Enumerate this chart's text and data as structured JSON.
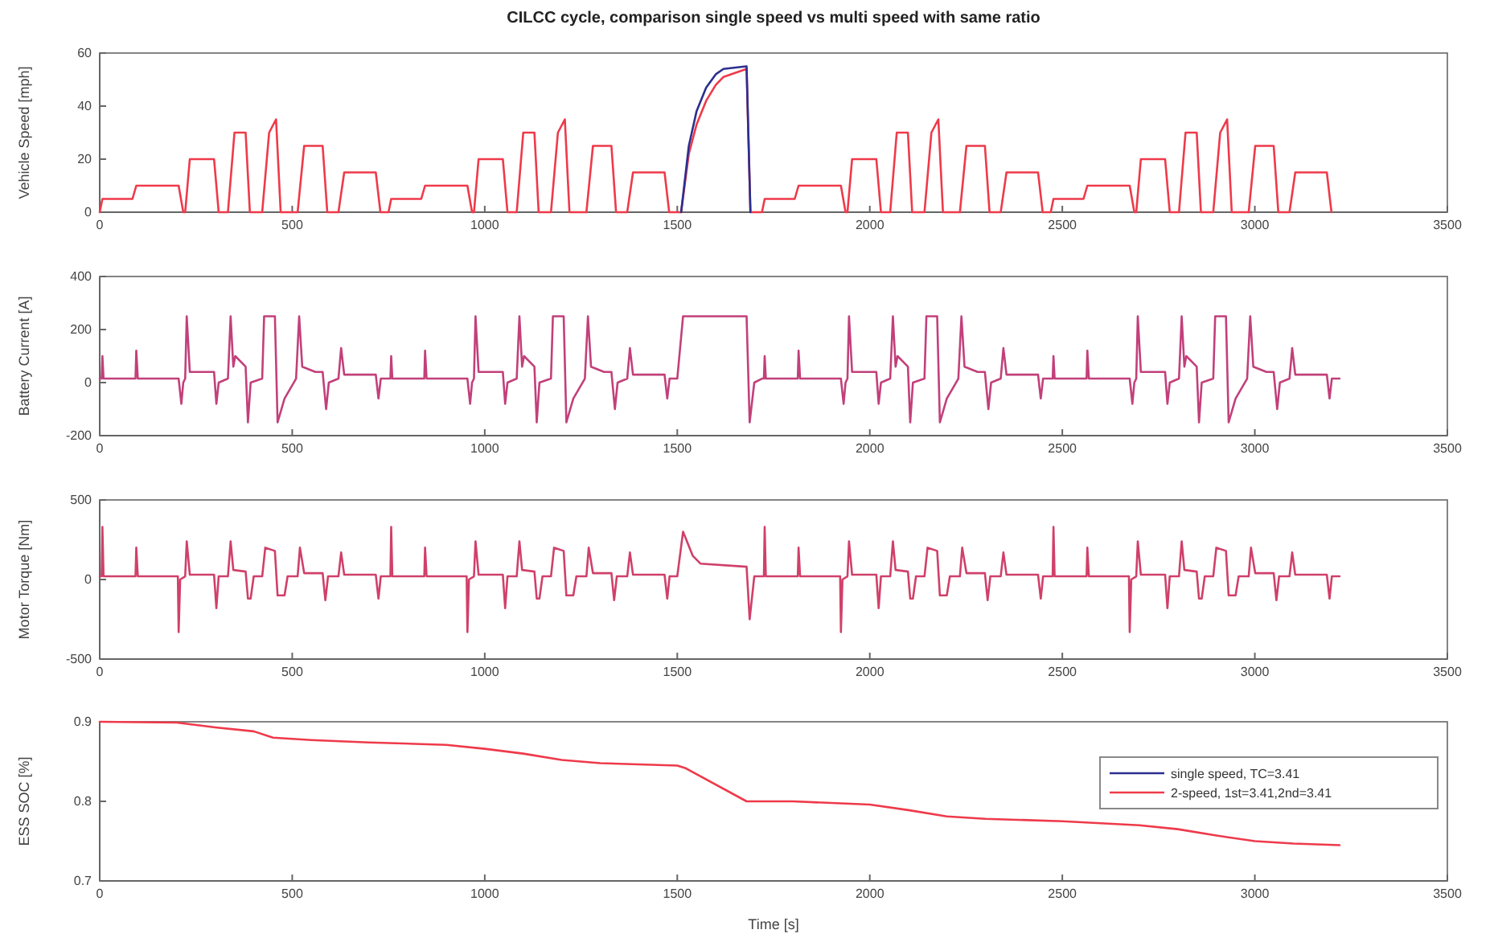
{
  "chart_data": [
    {
      "type": "line",
      "title": "CILCC cycle, comparison single speed vs multi speed with same ratio",
      "ylabel": "Vehicle Speed [mph]",
      "xlim": [
        0,
        3500
      ],
      "xticks": [
        0,
        500,
        1000,
        1500,
        2000,
        2500,
        3000,
        3500
      ],
      "ylim": [
        0,
        60
      ],
      "yticks": [
        0,
        20,
        40,
        60
      ],
      "grid": false,
      "legend": false,
      "x": [
        0,
        7,
        85,
        95,
        205,
        217,
        222,
        234,
        297,
        309,
        333,
        350,
        379,
        390,
        422,
        440,
        458,
        470,
        514,
        531,
        579,
        591,
        620,
        635,
        717,
        729,
        750,
        757,
        835,
        845,
        955,
        967,
        972,
        984,
        1047,
        1059,
        1083,
        1100,
        1129,
        1140,
        1172,
        1190,
        1208,
        1220,
        1264,
        1281,
        1329,
        1341,
        1370,
        1385,
        1467,
        1479,
        1510,
        1530,
        1550,
        1575,
        1600,
        1620,
        1680,
        1690,
        1720,
        1727,
        1805,
        1815,
        1925,
        1937,
        1942,
        1954,
        2017,
        2029,
        2053,
        2070,
        2099,
        2110,
        2142,
        2160,
        2178,
        2190,
        2234,
        2251,
        2299,
        2311,
        2340,
        2355,
        2437,
        2449,
        2470,
        2477,
        2555,
        2565,
        2675,
        2687,
        2692,
        2704,
        2767,
        2779,
        2803,
        2820,
        2849,
        2860,
        2892,
        2910,
        2928,
        2940,
        2984,
        3001,
        3049,
        3061,
        3090,
        3105,
        3187,
        3199
      ],
      "series": [
        {
          "color": "#2b2f8f",
          "values": [
            null,
            null,
            null,
            null,
            null,
            null,
            null,
            null,
            null,
            null,
            null,
            null,
            null,
            null,
            null,
            null,
            null,
            null,
            null,
            null,
            null,
            null,
            null,
            null,
            null,
            null,
            null,
            null,
            null,
            null,
            null,
            null,
            null,
            null,
            null,
            null,
            null,
            null,
            null,
            null,
            null,
            null,
            null,
            null,
            null,
            null,
            null,
            null,
            null,
            null,
            null,
            null,
            0,
            25,
            38,
            47,
            52,
            54,
            55,
            0,
            null,
            null,
            null,
            null,
            null,
            null,
            null,
            null,
            null,
            null,
            null,
            null,
            null,
            null,
            null,
            null,
            null,
            null,
            null,
            null,
            null,
            null,
            null,
            null,
            null,
            null,
            null,
            null,
            null,
            null,
            null,
            null,
            null,
            null,
            null,
            null,
            null,
            null,
            null,
            null,
            null,
            null,
            null,
            null,
            null,
            null,
            null,
            null,
            null,
            null,
            null,
            null
          ]
        },
        {
          "color": "#ee3a4a",
          "values": [
            0,
            5,
            5,
            10,
            10,
            0,
            0,
            20,
            20,
            0,
            0,
            30,
            30,
            0,
            0,
            30,
            35,
            0,
            0,
            25,
            25,
            0,
            0,
            15,
            15,
            0,
            0,
            5,
            5,
            10,
            10,
            0,
            0,
            20,
            20,
            0,
            0,
            30,
            30,
            0,
            0,
            30,
            35,
            0,
            0,
            25,
            25,
            0,
            0,
            15,
            15,
            0,
            0,
            22,
            33,
            42,
            48,
            51,
            54,
            0,
            0,
            5,
            5,
            10,
            10,
            0,
            0,
            20,
            20,
            0,
            0,
            30,
            30,
            0,
            0,
            30,
            35,
            0,
            0,
            25,
            25,
            0,
            0,
            15,
            15,
            0,
            0,
            5,
            5,
            10,
            10,
            0,
            0,
            20,
            20,
            0,
            0,
            30,
            30,
            0,
            0,
            30,
            35,
            0,
            0,
            25,
            25,
            0,
            0,
            15,
            15,
            0
          ]
        }
      ]
    },
    {
      "type": "line",
      "ylabel": "Battery Current [A]",
      "xlim": [
        0,
        3500
      ],
      "xticks": [
        0,
        500,
        1000,
        1500,
        2000,
        2500,
        3000,
        3500
      ],
      "ylim": [
        -200,
        400
      ],
      "yticks": [
        -200,
        0,
        200,
        400
      ],
      "grid": false,
      "legend": false,
      "x": [
        0,
        5,
        7,
        10,
        93,
        95,
        99,
        205,
        212,
        217,
        222,
        226,
        234,
        297,
        303,
        309,
        333,
        340,
        347,
        352,
        379,
        385,
        392,
        422,
        427,
        455,
        462,
        480,
        510,
        518,
        526,
        560,
        579,
        588,
        595,
        620,
        627,
        635,
        717,
        724,
        730,
        750,
        755,
        757,
        760,
        843,
        845,
        849,
        955,
        962,
        967,
        972,
        976,
        984,
        1047,
        1053,
        1059,
        1083,
        1090,
        1097,
        1102,
        1129,
        1135,
        1142,
        1172,
        1177,
        1205,
        1212,
        1230,
        1260,
        1268,
        1276,
        1310,
        1329,
        1338,
        1345,
        1370,
        1377,
        1385,
        1467,
        1474,
        1480,
        1500,
        1515,
        1680,
        1688,
        1700,
        1720,
        1725,
        1727,
        1730,
        1813,
        1815,
        1819,
        1925,
        1932,
        1937,
        1942,
        1946,
        1954,
        2017,
        2023,
        2029,
        2053,
        2060,
        2067,
        2072,
        2099,
        2105,
        2112,
        2142,
        2147,
        2175,
        2182,
        2200,
        2230,
        2238,
        2246,
        2280,
        2299,
        2308,
        2315,
        2340,
        2347,
        2355,
        2437,
        2444,
        2450,
        2470,
        2475,
        2477,
        2480,
        2563,
        2565,
        2569,
        2675,
        2682,
        2687,
        2692,
        2696,
        2704,
        2767,
        2773,
        2779,
        2803,
        2810,
        2817,
        2822,
        2849,
        2855,
        2862,
        2892,
        2897,
        2925,
        2932,
        2950,
        2980,
        2988,
        2996,
        3030,
        3049,
        3058,
        3065,
        3090,
        3097,
        3105,
        3187,
        3194,
        3200,
        3220
      ],
      "series": [
        {
          "color": "#c2407a",
          "values": [
            15,
            15,
            100,
            15,
            15,
            120,
            15,
            15,
            -80,
            0,
            15,
            250,
            40,
            40,
            -80,
            0,
            15,
            250,
            60,
            100,
            60,
            -150,
            0,
            15,
            250,
            250,
            -150,
            -60,
            15,
            250,
            60,
            40,
            40,
            -100,
            0,
            15,
            130,
            30,
            30,
            -60,
            15,
            15,
            15,
            100,
            15,
            15,
            120,
            15,
            15,
            -80,
            0,
            15,
            250,
            40,
            40,
            -80,
            0,
            15,
            250,
            60,
            100,
            60,
            -150,
            0,
            15,
            250,
            250,
            -150,
            -60,
            15,
            250,
            60,
            40,
            40,
            -100,
            0,
            15,
            130,
            30,
            30,
            -60,
            15,
            15,
            250,
            250,
            -150,
            0,
            15,
            15,
            100,
            15,
            15,
            120,
            15,
            15,
            -80,
            0,
            15,
            250,
            40,
            40,
            -80,
            0,
            15,
            250,
            60,
            100,
            60,
            -150,
            0,
            15,
            250,
            250,
            -150,
            -60,
            15,
            250,
            60,
            40,
            40,
            -100,
            0,
            15,
            130,
            30,
            30,
            -60,
            15,
            15,
            15,
            100,
            15,
            15,
            120,
            15,
            15,
            -80,
            0,
            15,
            250,
            40,
            40,
            -80,
            0,
            15,
            250,
            60,
            100,
            60,
            -150,
            0,
            15,
            250,
            250,
            -150,
            -60,
            15,
            250,
            60,
            40,
            40,
            -100,
            0,
            15,
            130,
            30,
            30,
            -60,
            15,
            15
          ]
        }
      ]
    },
    {
      "type": "line",
      "ylabel": "Motor Torque [Nm]",
      "xlim": [
        0,
        3500
      ],
      "xticks": [
        0,
        500,
        1000,
        1500,
        2000,
        2500,
        3000,
        3500
      ],
      "ylim": [
        -500,
        500
      ],
      "yticks": [
        -500,
        0,
        500
      ],
      "grid": false,
      "legend": false,
      "x": [
        0,
        5,
        7,
        10,
        93,
        95,
        99,
        203,
        205,
        209,
        222,
        226,
        234,
        297,
        303,
        309,
        333,
        340,
        347,
        379,
        385,
        392,
        400,
        422,
        430,
        455,
        462,
        480,
        488,
        514,
        520,
        531,
        579,
        586,
        593,
        620,
        627,
        635,
        717,
        724,
        730,
        750,
        755,
        757,
        760,
        843,
        845,
        849,
        953,
        955,
        959,
        972,
        976,
        984,
        1047,
        1053,
        1059,
        1083,
        1090,
        1097,
        1129,
        1135,
        1142,
        1150,
        1172,
        1180,
        1205,
        1212,
        1230,
        1238,
        1264,
        1270,
        1281,
        1329,
        1336,
        1343,
        1370,
        1377,
        1385,
        1467,
        1474,
        1480,
        1500,
        1515,
        1540,
        1560,
        1680,
        1688,
        1700,
        1720,
        1725,
        1727,
        1730,
        1813,
        1815,
        1819,
        1923,
        1925,
        1929,
        1942,
        1946,
        1954,
        2017,
        2023,
        2029,
        2053,
        2060,
        2067,
        2099,
        2105,
        2112,
        2120,
        2142,
        2150,
        2175,
        2182,
        2200,
        2208,
        2234,
        2240,
        2251,
        2299,
        2306,
        2313,
        2340,
        2347,
        2355,
        2437,
        2444,
        2450,
        2470,
        2475,
        2477,
        2480,
        2563,
        2565,
        2569,
        2673,
        2675,
        2679,
        2692,
        2696,
        2704,
        2767,
        2773,
        2779,
        2803,
        2810,
        2817,
        2849,
        2855,
        2862,
        2870,
        2892,
        2900,
        2925,
        2932,
        2950,
        2958,
        2984,
        2990,
        3001,
        3049,
        3056,
        3063,
        3090,
        3097,
        3105,
        3187,
        3194,
        3200,
        3220
      ],
      "series": [
        {
          "color": "#d0406a",
          "values": [
            20,
            20,
            330,
            20,
            20,
            200,
            20,
            20,
            -330,
            0,
            20,
            240,
            30,
            30,
            -180,
            20,
            20,
            240,
            60,
            50,
            -120,
            -120,
            20,
            20,
            200,
            180,
            -100,
            -100,
            20,
            20,
            200,
            40,
            40,
            -130,
            20,
            20,
            170,
            30,
            30,
            -120,
            20,
            20,
            20,
            330,
            20,
            20,
            200,
            20,
            20,
            -330,
            0,
            20,
            240,
            30,
            30,
            -180,
            20,
            20,
            240,
            60,
            50,
            -120,
            -120,
            20,
            20,
            200,
            180,
            -100,
            -100,
            20,
            20,
            200,
            40,
            40,
            -130,
            20,
            20,
            170,
            30,
            30,
            -120,
            20,
            20,
            300,
            150,
            100,
            80,
            -250,
            20,
            20,
            20,
            330,
            20,
            20,
            200,
            20,
            20,
            -330,
            0,
            20,
            240,
            30,
            30,
            -180,
            20,
            20,
            240,
            60,
            50,
            -120,
            -120,
            20,
            20,
            200,
            180,
            -100,
            -100,
            20,
            20,
            200,
            40,
            40,
            -130,
            20,
            20,
            170,
            30,
            30,
            -120,
            20,
            20,
            20,
            330,
            20,
            20,
            200,
            20,
            20,
            -330,
            0,
            20,
            240,
            30,
            30,
            -180,
            20,
            20,
            240,
            60,
            50,
            -120,
            -120,
            20,
            20,
            200,
            180,
            -100,
            -100,
            20,
            20,
            200,
            40,
            40,
            -130,
            20,
            20,
            170,
            30,
            30,
            -120,
            20,
            20
          ]
        }
      ]
    },
    {
      "type": "line",
      "xlabel": "Time [s]",
      "ylabel": "ESS SOC [%]",
      "xlim": [
        0,
        3500
      ],
      "xticks": [
        0,
        500,
        1000,
        1500,
        2000,
        2500,
        3000,
        3500
      ],
      "ylim": [
        0.7,
        0.9
      ],
      "yticks": [
        0.7,
        0.8,
        0.9
      ],
      "grid": false,
      "legend": "top right",
      "x": [
        0,
        200,
        300,
        400,
        450,
        550,
        700,
        900,
        1000,
        1100,
        1200,
        1300,
        1500,
        1520,
        1680,
        1800,
        2000,
        2100,
        2200,
        2300,
        2500,
        2700,
        2800,
        2900,
        3000,
        3100,
        3220
      ],
      "series": [
        {
          "name": "single speed, TC=3.41",
          "color": "#2b2f8f",
          "values": [
            null,
            null,
            null,
            null,
            null,
            null,
            null,
            null,
            null,
            null,
            null,
            null,
            null,
            null,
            null,
            null,
            null,
            null,
            null,
            null,
            null,
            null,
            null,
            null,
            null,
            null,
            null
          ]
        },
        {
          "name": "2-speed, 1st=3.41,2nd=3.41",
          "color": "#ee3a4a",
          "values": [
            0.9,
            0.899,
            0.893,
            0.888,
            0.88,
            0.877,
            0.874,
            0.871,
            0.866,
            0.86,
            0.852,
            0.848,
            0.845,
            0.842,
            0.8,
            0.8,
            0.796,
            0.789,
            0.781,
            0.778,
            0.775,
            0.77,
            0.765,
            0.757,
            0.75,
            0.747,
            0.745
          ]
        }
      ]
    }
  ]
}
